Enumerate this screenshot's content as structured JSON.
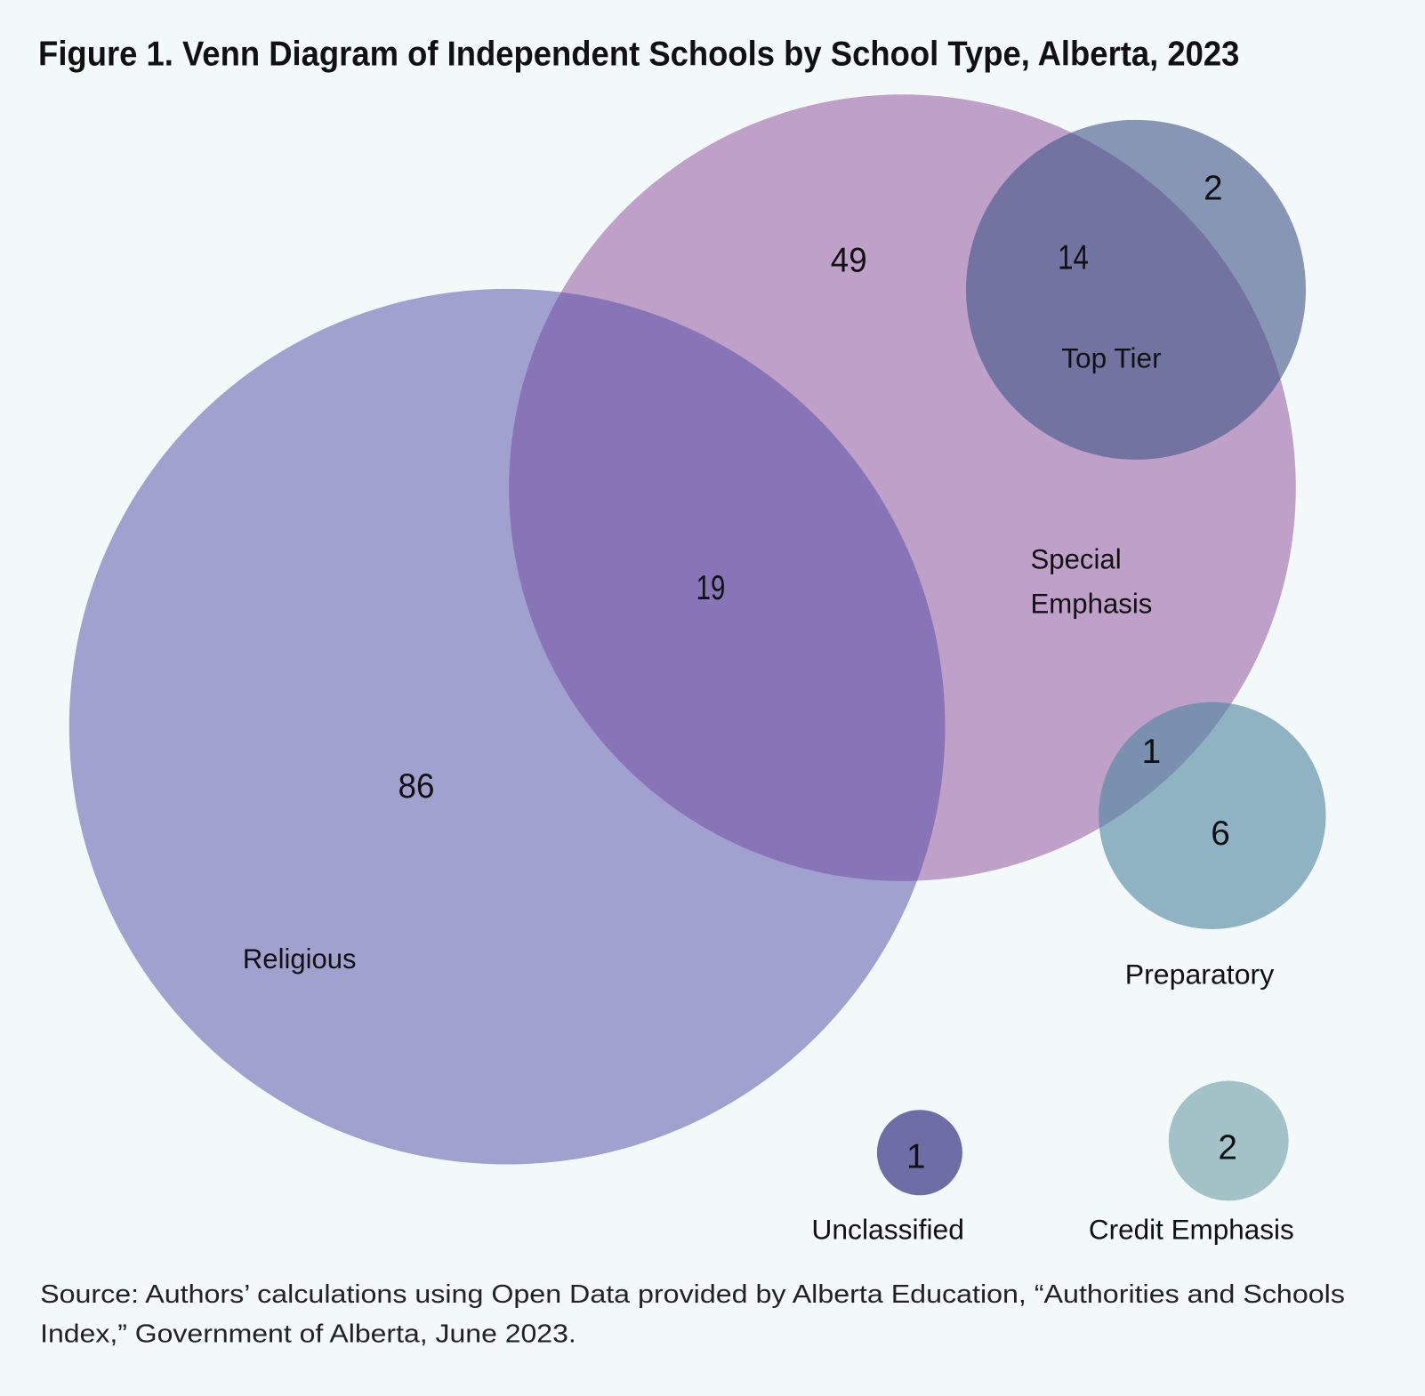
{
  "title": "Figure 1. Venn Diagram of Independent Schools by School Type, Alberta, 2023",
  "sets": {
    "religious": {
      "label": "Religious",
      "only": "86",
      "color": "#a1a1cf"
    },
    "special_emphasis": {
      "label_line1": "Special",
      "label_line2": "Emphasis",
      "only": "49",
      "color": "#bea0c9"
    },
    "top_tier": {
      "label": "Top Tier",
      "only": "2",
      "color": "#8796b4"
    },
    "preparatory": {
      "label": "Preparatory",
      "only": "6",
      "color": "#8fb3c2"
    },
    "unclassified": {
      "label": "Unclassified",
      "count": "1",
      "color": "#6f6da5"
    },
    "credit_emphasis": {
      "label": "Credit Emphasis",
      "count": "2",
      "color": "#a3c2c8"
    }
  },
  "intersections": {
    "religious_special_emphasis": "19",
    "special_emphasis_top_tier": "14",
    "special_emphasis_preparatory": "1"
  },
  "source": {
    "line1": "Source: Authors’ calculations using Open Data provided by Alberta Education, “Authorities and Schools",
    "line2": "Index,” Government of Alberta, June 2023."
  }
}
